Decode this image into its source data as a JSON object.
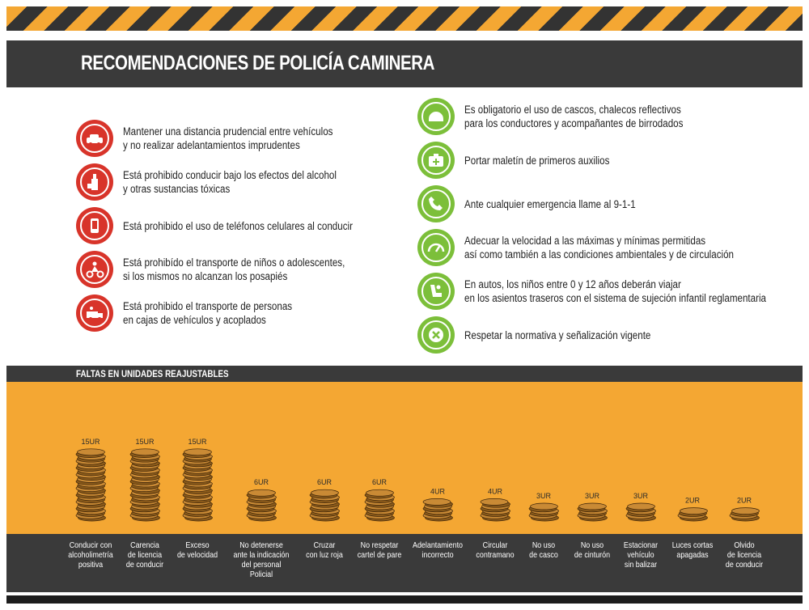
{
  "title": "RECOMENDACIONES DE POLICÍA CAMINERA",
  "recommendations_left": [
    {
      "icon": "car-distance-icon",
      "lines": [
        "Mantener una distancia prudencial entre vehículos",
        "y no realizar adelantamientos imprudentes"
      ]
    },
    {
      "icon": "alcohol-icon",
      "lines": [
        "Está prohibido conducir bajo los efectos del alcohol",
        "y otras sustancias tóxicas"
      ]
    },
    {
      "icon": "phone-driving-icon",
      "lines": [
        "Está prohibido el uso de teléfonos celulares al conducir"
      ]
    },
    {
      "icon": "child-motorcycle-icon",
      "lines": [
        "Está prohibído el transporte de niños o adolescentes,",
        "si los mismos no alcanzan los posapiés"
      ]
    },
    {
      "icon": "truck-passengers-icon",
      "lines": [
        "Está prohibido el transporte de personas",
        "en cajas de vehículos y acoplados"
      ]
    }
  ],
  "recommendations_right": [
    {
      "icon": "helmet-icon",
      "lines": [
        "Es obligatorio el uso de cascos, chalecos reflectivos",
        "para los conductores y acompañantes de birrodados"
      ]
    },
    {
      "icon": "first-aid-kit-icon",
      "lines": [
        "Portar maletín de primeros auxilios"
      ]
    },
    {
      "icon": "phone-emergency-icon",
      "lines": [
        "Ante cualquier emergencia llame al 9-1-1"
      ]
    },
    {
      "icon": "speedometer-icon",
      "lines": [
        "Adecuar la velocidad a las máximas y mínimas permitidas",
        "así como también a las condiciones ambientales y de circulación"
      ]
    },
    {
      "icon": "child-seat-icon",
      "lines": [
        "En autos, los niños entre 0 y 12 años deberán viajar",
        "en los asientos traseros con el sistema de sujeción infantil reglamentaria"
      ]
    },
    {
      "icon": "traffic-sign-icon",
      "lines": [
        "Respetar la normativa y señalización vigente"
      ]
    }
  ],
  "faltas_title": "FALTAS EN UNIDADES REAJUSTABLES",
  "colors": {
    "orange": "#f4a733",
    "dark": "#3a3a3a",
    "red": "#d8342a",
    "green": "#7cbf3a",
    "coin": "#8a5a1a",
    "coin_light": "#c98a35"
  },
  "chart_data": {
    "type": "bar",
    "title": "FALTAS EN UNIDADES REAJUSTABLES",
    "unit": "UR",
    "categories": [
      [
        "Conducir con",
        "alcoholimetría",
        "positiva"
      ],
      [
        "Carencia",
        "de licencia",
        "de conducir"
      ],
      [
        "Exceso",
        "de velocidad"
      ],
      [
        "No detenerse",
        "ante la indicación",
        "del personal Policial"
      ],
      [
        "Cruzar",
        "con luz roja"
      ],
      [
        "No respetar",
        "cartel de pare"
      ],
      [
        "Adelantamiento",
        "incorrecto"
      ],
      [
        "Circular",
        "contramano"
      ],
      [
        "No uso",
        "de casco"
      ],
      [
        "No uso",
        "de cinturón"
      ],
      [
        "Estacionar",
        "vehículo",
        "sin balizar"
      ],
      [
        "Luces cortas",
        "apagadas"
      ],
      [
        "Olvido",
        "de licencia",
        "de conducir"
      ]
    ],
    "values": [
      15,
      15,
      15,
      6,
      6,
      6,
      4,
      4,
      3,
      3,
      3,
      2,
      2
    ],
    "value_labels": [
      "15UR",
      "15UR",
      "15UR",
      "6UR",
      "6UR",
      "6UR",
      "4UR",
      "4UR",
      "3UR",
      "3UR",
      "3UR",
      "2UR",
      "2UR"
    ]
  }
}
